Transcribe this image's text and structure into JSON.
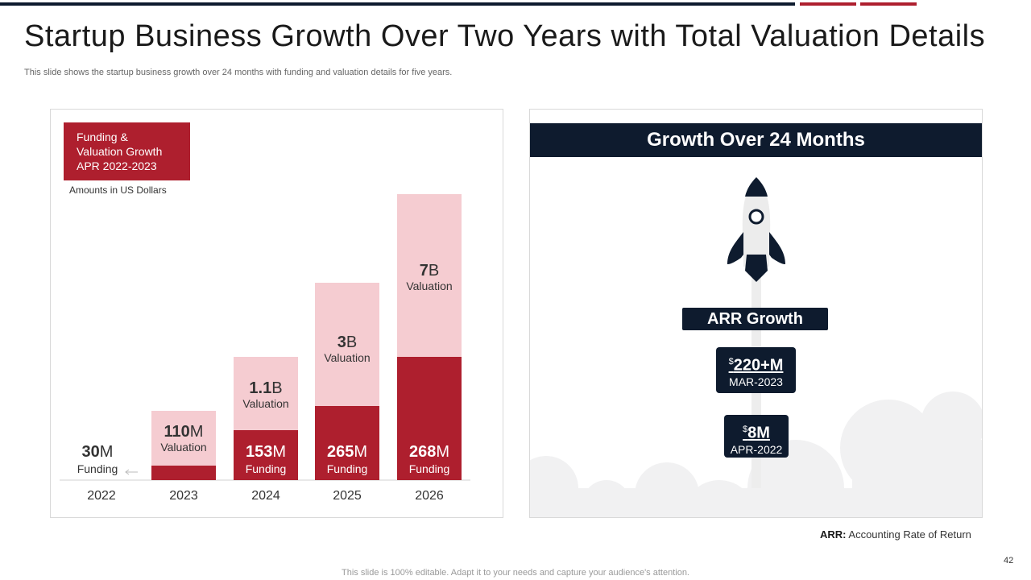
{
  "header": {
    "title": "Startup Business Growth Over Two Years with Total Valuation Details",
    "subtitle": "This slide shows the startup business growth over 24 months with funding and valuation details for five years."
  },
  "colors": {
    "navy": "#0e1b2e",
    "crimson": "#ae1f2e",
    "pink": "#f5ccd1"
  },
  "legend": {
    "label": "Funding & Valuation Growth APR 2022-2023",
    "amounts_note": "Amounts in US Dollars"
  },
  "chart_data": {
    "type": "bar",
    "stacked": true,
    "categories": [
      "2022",
      "2023",
      "2024",
      "2025",
      "2026"
    ],
    "series": [
      {
        "name": "Funding",
        "unit": "M",
        "values": [
          30,
          110,
          153,
          265,
          268
        ],
        "labels": [
          "30M",
          "",
          "153M",
          "265M",
          "268M"
        ],
        "color": "#ae1f2e"
      },
      {
        "name": "Valuation",
        "values": [
          null,
          110,
          1100,
          3000,
          7000
        ],
        "labels": [
          "",
          "110M",
          "1.1B",
          "3B",
          "7B"
        ],
        "color": "#f5ccd1"
      }
    ],
    "label_texts": {
      "funding": "Funding",
      "valuation": "Valuation"
    },
    "total_heights_scale": [
      0,
      86,
      153,
      245,
      355
    ],
    "funding_heights_scale": [
      0,
      18,
      62,
      92,
      153
    ]
  },
  "growth_panel": {
    "title": "Growth Over 24 Months",
    "arr_label": "ARR Growth",
    "items": [
      {
        "currency": "$",
        "amount": "220+M",
        "date": "MAR-2023"
      },
      {
        "currency": "$",
        "amount": "8M",
        "date": "APR-2022"
      }
    ]
  },
  "footnote": {
    "abbr": "ARR:",
    "text": "Accounting Rate of Return"
  },
  "page_number": "42",
  "footer_text": "This slide is 100% editable. Adapt it to your needs and capture your audience's attention."
}
